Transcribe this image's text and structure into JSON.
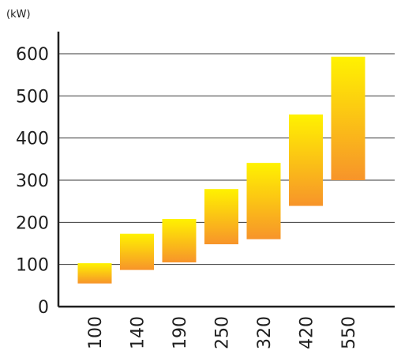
{
  "chart_data": {
    "type": "bar",
    "subtype": "floating-range",
    "unit_label": "(kW)",
    "categories": [
      "100",
      "140",
      "190",
      "250",
      "320",
      "420",
      "550"
    ],
    "ranges": [
      {
        "category": "100",
        "low": 55,
        "high": 103
      },
      {
        "category": "140",
        "low": 87,
        "high": 173
      },
      {
        "category": "190",
        "low": 105,
        "high": 208
      },
      {
        "category": "250",
        "low": 148,
        "high": 279
      },
      {
        "category": "320",
        "low": 160,
        "high": 341
      },
      {
        "category": "420",
        "low": 239,
        "high": 456
      },
      {
        "category": "550",
        "low": 300,
        "high": 593
      }
    ],
    "y_ticks": [
      "0",
      "100",
      "200",
      "300",
      "400",
      "500",
      "600"
    ],
    "ylim": [
      0,
      650
    ],
    "grid": true,
    "legend": "none",
    "bar_gradient": {
      "top": "#fff200",
      "bottom": "#f7942a"
    },
    "axis_color": "#1f1f1f"
  }
}
